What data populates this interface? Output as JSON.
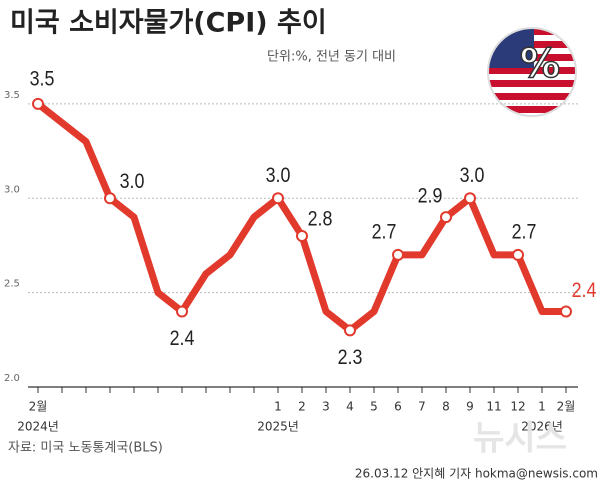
{
  "chart_data": {
    "type": "line",
    "title": "미국 소비자물가(CPI) 추이",
    "subtitle": "단위:%, 전년 동기 대비",
    "source": "자료: 미국 노동통계국(BLS)",
    "credit": "26.03.12 안지혜 기자 hokma@newsis.com",
    "watermark": "뉴시스",
    "categories": [
      "2월",
      null,
      null,
      null,
      null,
      null,
      null,
      null,
      null,
      null,
      "1",
      "2",
      "3",
      "4",
      "5",
      "6",
      "7",
      "8",
      "9",
      "11",
      "12",
      "1",
      "2월"
    ],
    "x_sublabels": [
      "2024년",
      null,
      null,
      null,
      null,
      null,
      null,
      null,
      null,
      null,
      "2025년",
      null,
      null,
      null,
      null,
      null,
      null,
      null,
      null,
      null,
      null,
      "2026년",
      null
    ],
    "series": [
      {
        "name": "CPI",
        "color": "#e2392d",
        "values": [
          3.5,
          3.4,
          3.3,
          3.0,
          2.9,
          2.5,
          2.4,
          2.6,
          2.7,
          2.9,
          3.0,
          2.8,
          2.4,
          2.3,
          2.4,
          2.7,
          2.7,
          2.9,
          3.0,
          2.7,
          2.7,
          2.4,
          2.4
        ],
        "value_labels": [
          "3.5",
          null,
          null,
          "3.0",
          null,
          null,
          "2.4",
          null,
          null,
          null,
          "3.0",
          "2.8",
          null,
          "2.3",
          null,
          "2.7",
          null,
          "2.9",
          "3.0",
          null,
          "2.7",
          null,
          "2.4"
        ]
      }
    ],
    "ylim": [
      2.0,
      3.6
    ],
    "yticks": [
      {
        "value": 2.0,
        "label": "2.0"
      },
      2.5,
      {
        "value": 3.0,
        "label": "3.0"
      },
      3.5
    ],
    "grid": true
  }
}
